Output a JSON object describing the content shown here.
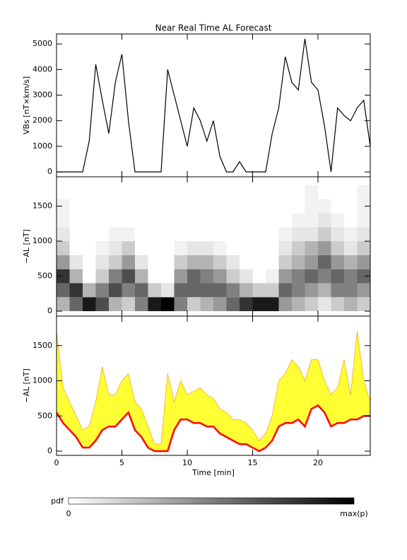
{
  "title": "Near Real Time AL Forecast",
  "chart_data": [
    {
      "type": "line",
      "ylabel": "VBs [nT×km/s]",
      "color": "#000000",
      "x": [
        0,
        0.5,
        1,
        1.5,
        2,
        2.5,
        3,
        3.5,
        4,
        4.5,
        5,
        5.5,
        6,
        6.5,
        7,
        7.5,
        8,
        8.5,
        9,
        9.5,
        10,
        10.5,
        11,
        11.5,
        12,
        12.5,
        13,
        13.5,
        14,
        14.5,
        15,
        15.5,
        16,
        16.5,
        17,
        17.5,
        18,
        18.5,
        19,
        19.5,
        20,
        20.5,
        21,
        21.5,
        22,
        22.5,
        23,
        23.5,
        24
      ],
      "values": [
        0,
        0,
        0,
        0,
        0,
        1200,
        4200,
        2800,
        1500,
        3500,
        4600,
        2000,
        0,
        0,
        0,
        0,
        0,
        4000,
        3000,
        2000,
        1000,
        2500,
        2000,
        1200,
        2000,
        600,
        0,
        0,
        400,
        0,
        0,
        0,
        0,
        1500,
        2500,
        4500,
        3500,
        3200,
        5200,
        3500,
        3200,
        1800,
        0,
        2500,
        2200,
        2000,
        2500,
        2800,
        1000
      ],
      "xlim": [
        0,
        24
      ],
      "xticks": [
        0,
        5,
        10,
        15,
        20
      ],
      "ylim": [
        -190,
        5390
      ],
      "yticks": [
        0,
        1000,
        2000,
        3000,
        4000,
        5000
      ]
    },
    {
      "type": "heatmap",
      "ylabel": "−AL [nT]",
      "x_bins": [
        0,
        1,
        2,
        3,
        4,
        5,
        6,
        7,
        8,
        9,
        10,
        11,
        12,
        13,
        14,
        15,
        16,
        17,
        18,
        19,
        20,
        21,
        22,
        23,
        24
      ],
      "y_bins": [
        0,
        200,
        400,
        600,
        800,
        1000,
        1200,
        1400,
        1600,
        1800
      ],
      "z": [
        [
          0.3,
          0.6,
          0.8,
          0.4,
          0.2,
          0.1,
          0.05,
          0.05,
          0
        ],
        [
          0.6,
          0.8,
          0.3,
          0.1,
          0,
          0,
          0,
          0,
          0
        ],
        [
          0.9,
          0.3,
          0,
          0,
          0,
          0,
          0,
          0,
          0
        ],
        [
          0.7,
          0.5,
          0.2,
          0.1,
          0.05,
          0,
          0,
          0,
          0
        ],
        [
          0.3,
          0.7,
          0.5,
          0.2,
          0.1,
          0.05,
          0,
          0,
          0
        ],
        [
          0.2,
          0.5,
          0.7,
          0.4,
          0.2,
          0.05,
          0,
          0,
          0
        ],
        [
          0.5,
          0.6,
          0.3,
          0.1,
          0,
          0,
          0,
          0,
          0
        ],
        [
          0.9,
          0.2,
          0,
          0,
          0,
          0,
          0,
          0,
          0
        ],
        [
          1,
          0.1,
          0,
          0,
          0,
          0,
          0,
          0,
          0
        ],
        [
          0.5,
          0.6,
          0.4,
          0.2,
          0.05,
          0,
          0,
          0,
          0
        ],
        [
          0.2,
          0.6,
          0.6,
          0.3,
          0.1,
          0,
          0,
          0,
          0
        ],
        [
          0.3,
          0.6,
          0.5,
          0.3,
          0.1,
          0,
          0,
          0,
          0
        ],
        [
          0.4,
          0.6,
          0.4,
          0.2,
          0.05,
          0,
          0,
          0,
          0
        ],
        [
          0.6,
          0.5,
          0.2,
          0.1,
          0,
          0,
          0,
          0,
          0
        ],
        [
          0.8,
          0.3,
          0.1,
          0,
          0,
          0,
          0,
          0,
          0
        ],
        [
          0.9,
          0.2,
          0,
          0,
          0,
          0,
          0,
          0,
          0
        ],
        [
          0.9,
          0.2,
          0.05,
          0,
          0,
          0,
          0,
          0,
          0
        ],
        [
          0.4,
          0.6,
          0.4,
          0.2,
          0.1,
          0.05,
          0,
          0,
          0
        ],
        [
          0.3,
          0.5,
          0.5,
          0.3,
          0.2,
          0.1,
          0.05,
          0,
          0
        ],
        [
          0.2,
          0.4,
          0.6,
          0.4,
          0.3,
          0.1,
          0.05,
          0.05,
          0.05
        ],
        [
          0.1,
          0.3,
          0.5,
          0.6,
          0.4,
          0.2,
          0.1,
          0.05,
          0
        ],
        [
          0.2,
          0.5,
          0.6,
          0.4,
          0.2,
          0.1,
          0.05,
          0,
          0
        ],
        [
          0.3,
          0.5,
          0.5,
          0.3,
          0.1,
          0.05,
          0,
          0,
          0
        ],
        [
          0.2,
          0.4,
          0.6,
          0.4,
          0.2,
          0.1,
          0.05,
          0.05,
          0.05
        ]
      ],
      "xlim": [
        0,
        24
      ],
      "xticks": [
        0,
        5,
        10,
        15,
        20
      ],
      "ylim": [
        -70,
        1920
      ],
      "yticks": [
        0,
        500,
        1000,
        1500
      ]
    },
    {
      "type": "band_line",
      "ylabel": "−AL [nT]",
      "xlabel": "Time [min]",
      "show_xtick_labels": true,
      "x": [
        0,
        0.5,
        1,
        1.5,
        2,
        2.5,
        3,
        3.5,
        4,
        4.5,
        5,
        5.5,
        6,
        6.5,
        7,
        7.5,
        8,
        8.5,
        9,
        9.5,
        10,
        10.5,
        11,
        11.5,
        12,
        12.5,
        13,
        13.5,
        14,
        14.5,
        15,
        15.5,
        16,
        16.5,
        17,
        17.5,
        18,
        18.5,
        19,
        19.5,
        20,
        20.5,
        21,
        21.5,
        22,
        22.5,
        23,
        23.5,
        24
      ],
      "series": [
        {
          "color": "#ffff33",
          "edge_color": "#f5a623",
          "values": [
            1700,
            900,
            700,
            500,
            300,
            350,
            700,
            1200,
            800,
            800,
            1000,
            1100,
            700,
            600,
            350,
            100,
            100,
            1100,
            700,
            1000,
            800,
            850,
            900,
            800,
            750,
            600,
            550,
            450,
            450,
            400,
            300,
            150,
            250,
            500,
            1000,
            1100,
            1300,
            1200,
            1000,
            1300,
            1300,
            1000,
            800,
            900,
            1300,
            800,
            1700,
            1000,
            700
          ]
        },
        {
          "color": "#ff0000",
          "values": [
            550,
            400,
            300,
            200,
            50,
            50,
            150,
            300,
            350,
            350,
            450,
            550,
            300,
            200,
            50,
            0,
            0,
            0,
            300,
            450,
            450,
            400,
            400,
            350,
            350,
            250,
            200,
            150,
            100,
            100,
            50,
            0,
            50,
            150,
            350,
            400,
            400,
            450,
            350,
            600,
            650,
            550,
            350,
            400,
            400,
            450,
            450,
            500,
            500
          ]
        }
      ],
      "xlim": [
        0,
        24
      ],
      "xticks": [
        0,
        5,
        10,
        15,
        20
      ],
      "ylim": [
        -60,
        1920
      ],
      "yticks": [
        0,
        500,
        1000,
        1500
      ]
    }
  ],
  "colorbar": {
    "label": "pdf",
    "min": 0,
    "max_label": "max(p)",
    "colors": [
      "#ffffff",
      "#000000"
    ]
  }
}
